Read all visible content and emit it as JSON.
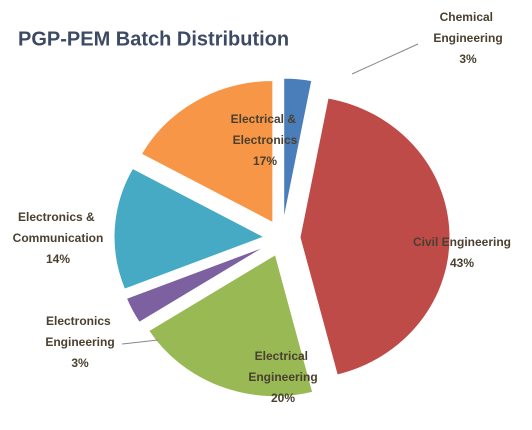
{
  "chart_data": {
    "type": "pie",
    "title": "PGP-PEM Batch Distribution",
    "categories": [
      "Chemical Engineering",
      "Civil Engineering",
      "Electrical Engineering",
      "Electronics Engineering",
      "Electronics & Communication",
      "Electrical & Electronics"
    ],
    "values": [
      3,
      43,
      20,
      3,
      14,
      17
    ],
    "value_labels": [
      "3%",
      "43%",
      "20%",
      "3%",
      "14%",
      "17%"
    ],
    "colors": [
      "#4a7ebb",
      "#be4b48",
      "#98b954",
      "#7d60a0",
      "#46aac5",
      "#f79646"
    ]
  }
}
